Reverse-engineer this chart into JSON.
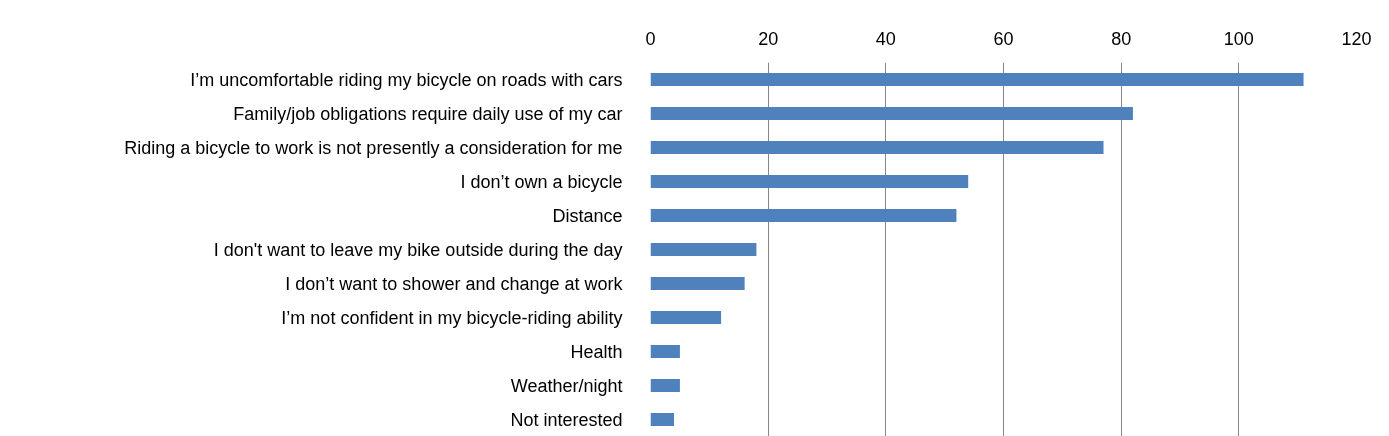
{
  "chart_data": {
    "type": "bar",
    "orientation": "horizontal",
    "categories": [
      "I’m uncomfortable riding my bicycle on roads with cars",
      "Family/job obligations require daily use of my car",
      "Riding a bicycle to work is not presently a consideration for me",
      "I don’t own a bicycle",
      "Distance",
      "I don't want to leave my bike outside during the day",
      "I don’t want to shower and change at work",
      "I’m not confident in my bicycle-riding ability",
      "Health",
      "Weather/night",
      "Not interested"
    ],
    "values": [
      111,
      82,
      77,
      54,
      52,
      18,
      16,
      12,
      5,
      5,
      4
    ],
    "color": "#4f81bd",
    "xlim": [
      0,
      120
    ],
    "xticks": [
      0,
      20,
      40,
      60,
      80,
      100,
      120
    ],
    "grid": "x"
  }
}
